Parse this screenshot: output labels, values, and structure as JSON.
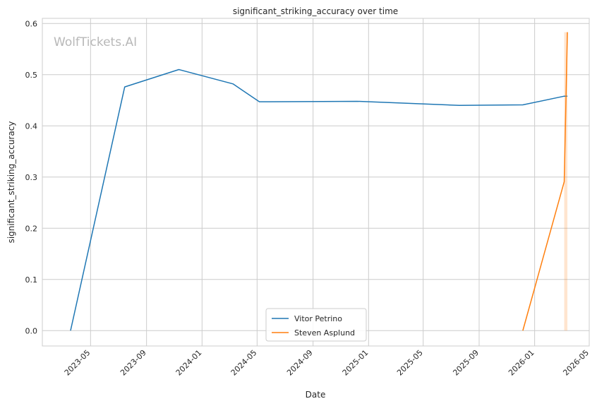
{
  "chart_data": {
    "type": "line",
    "title": "significant_striking_accuracy over time",
    "xlabel": "Date",
    "ylabel": "significant_striking_accuracy",
    "watermark": "WolfTickets.AI",
    "xlim": [
      "2023-01-15",
      "2026-05-01"
    ],
    "ylim": [
      -0.03,
      0.61
    ],
    "x_ticks": [
      "2023-05",
      "2023-09",
      "2024-01",
      "2024-05",
      "2024-09",
      "2025-01",
      "2025-05",
      "2025-09",
      "2026-01",
      "2026-05"
    ],
    "y_ticks": [
      0.0,
      0.1,
      0.2,
      0.3,
      0.4,
      0.5,
      0.6
    ],
    "y_tick_labels": [
      "0.0",
      "0.1",
      "0.2",
      "0.3",
      "0.4",
      "0.5",
      "0.6"
    ],
    "grid": true,
    "legend_position": "bottom-center",
    "series": [
      {
        "name": "Vitor Petrino",
        "color": "#1f77b4",
        "points": [
          {
            "x": "2023-03-18",
            "y": 0.0
          },
          {
            "x": "2023-07-15",
            "y": 0.476
          },
          {
            "x": "2023-11-11",
            "y": 0.51
          },
          {
            "x": "2024-03-09",
            "y": 0.482
          },
          {
            "x": "2024-05-06",
            "y": 0.447
          },
          {
            "x": "2024-12-07",
            "y": 0.448
          },
          {
            "x": "2025-07-19",
            "y": 0.44
          },
          {
            "x": "2025-12-06",
            "y": 0.441
          },
          {
            "x": "2026-03-07",
            "y": 0.458
          },
          {
            "x": "2026-03-14",
            "y": 0.458
          }
        ]
      },
      {
        "name": "Steven Asplund",
        "color": "#ff7f0e",
        "points": [
          {
            "x": "2025-12-06",
            "y": 0.0
          },
          {
            "x": "2026-03-07",
            "y": 0.291
          },
          {
            "x": "2026-03-14",
            "y": 0.583
          }
        ],
        "band": {
          "x": [
            "2026-03-07",
            "2026-03-14"
          ],
          "lower": [
            0.0,
            0.0
          ],
          "upper": [
            0.583,
            0.583
          ]
        }
      }
    ]
  }
}
